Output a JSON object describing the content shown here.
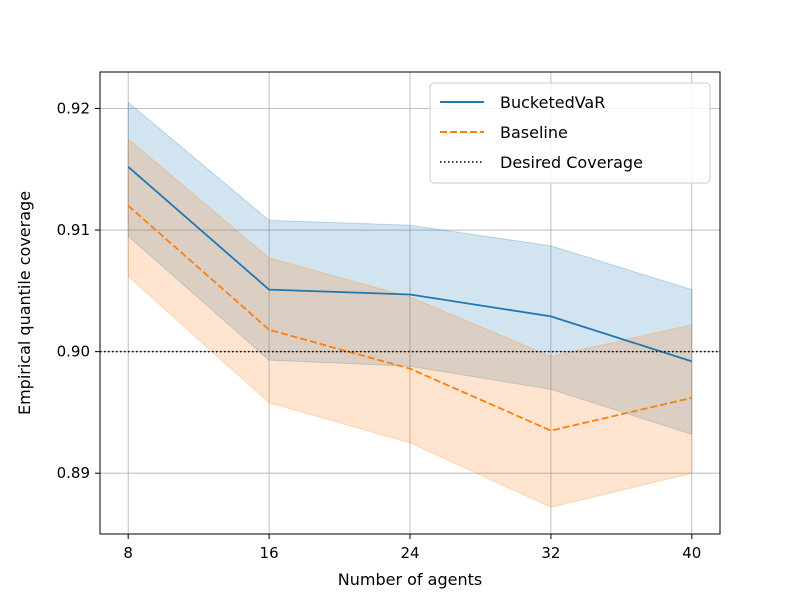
{
  "chart_data": {
    "type": "line",
    "title": "",
    "xlabel": "Number of agents",
    "ylabel": "Empirical quantile coverage",
    "x": [
      8,
      16,
      24,
      32,
      40
    ],
    "xticks": [
      8,
      16,
      24,
      32,
      40
    ],
    "yticks": [
      0.89,
      0.9,
      0.91,
      0.92
    ],
    "ytick_labels": [
      "0.89",
      "0.90",
      "0.91",
      "0.92"
    ],
    "xlim": [
      6.4,
      41.6
    ],
    "ylim": [
      0.885,
      0.923
    ],
    "grid": true,
    "legend_position": "top-right",
    "reference_line": {
      "name": "Desired Coverage",
      "value": 0.9,
      "color": "#000000",
      "style": "dotted"
    },
    "series": [
      {
        "name": "BucketedVaR",
        "color": "#1f77b4",
        "style": "solid",
        "values": [
          0.9152,
          0.9051,
          0.9047,
          0.9029,
          0.8992
        ],
        "upper": [
          0.9205,
          0.9108,
          0.9104,
          0.9087,
          0.9051
        ],
        "lower": [
          0.9095,
          0.8993,
          0.8988,
          0.8969,
          0.8932
        ]
      },
      {
        "name": "Baseline",
        "color": "#ff7f0e",
        "style": "dashed",
        "values": [
          0.912,
          0.9018,
          0.8986,
          0.8935,
          0.8962
        ],
        "upper": [
          0.9175,
          0.9077,
          0.9045,
          0.8996,
          0.9022
        ],
        "lower": [
          0.9062,
          0.8958,
          0.8925,
          0.8872,
          0.89
        ]
      }
    ]
  }
}
